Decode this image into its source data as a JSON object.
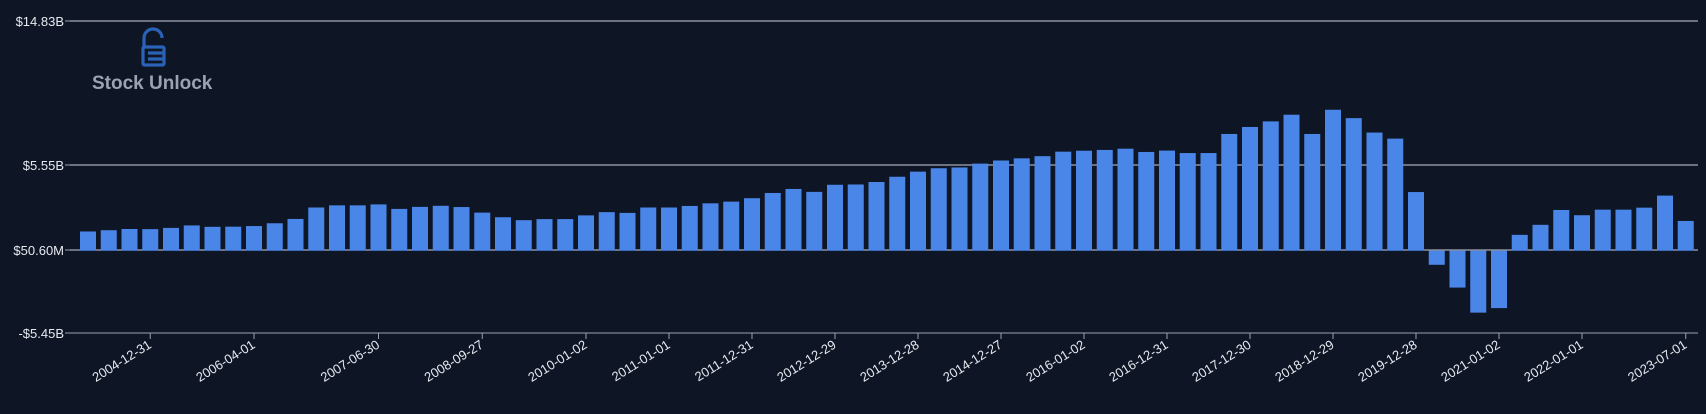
{
  "chart_data": {
    "type": "bar",
    "title": "",
    "xlabel": "",
    "ylabel": "",
    "series_color": "#4a86e8",
    "background": "#0e1626",
    "grid": true,
    "y_ticks": [
      {
        "value": 14830,
        "label": "$14.83B"
      },
      {
        "value": 5550,
        "label": "$5.55B"
      },
      {
        "value": 50.6,
        "label": "$50.60M"
      },
      {
        "value": -5450,
        "label": "-$5.45B"
      }
    ],
    "x_tick_labels": [
      "2004-12-31",
      "2006-04-01",
      "2007-06-30",
      "2008-09-27",
      "2010-01-02",
      "2011-01-01",
      "2011-12-31",
      "2012-12-29",
      "2013-12-28",
      "2014-12-27",
      "2016-01-02",
      "2016-12-31",
      "2017-12-30",
      "2018-12-29",
      "2019-12-28",
      "2021-01-02",
      "2022-01-01",
      "2023-07-01"
    ],
    "x_tick_bar_index": [
      3,
      8,
      14,
      19,
      24,
      28,
      32,
      36,
      40,
      44,
      48,
      52,
      56,
      60,
      64,
      68,
      72,
      77
    ],
    "values_musd": [
      1250,
      1330,
      1410,
      1400,
      1480,
      1640,
      1550,
      1560,
      1600,
      1780,
      2060,
      2800,
      2940,
      2940,
      3000,
      2710,
      2840,
      2910,
      2830,
      2470,
      2170,
      1980,
      2050,
      2050,
      2290,
      2500,
      2450,
      2800,
      2800,
      2900,
      3070,
      3180,
      3400,
      3740,
      4000,
      3810,
      4270,
      4290,
      4450,
      4790,
      5120,
      5340,
      5390,
      5640,
      5840,
      5980,
      6120,
      6410,
      6470,
      6520,
      6600,
      6390,
      6480,
      6320,
      6320,
      7550,
      8000,
      8360,
      8790,
      7550,
      9110,
      8570,
      7640,
      7250,
      3800,
      -930,
      -2440,
      -4100,
      -3800,
      1030,
      1680,
      2640,
      2300,
      2660,
      2660,
      2790,
      3570,
      1930
    ],
    "values_unit": "millions USD"
  },
  "logo": {
    "text": "Stock Unlock",
    "icon": "lock-icon",
    "icon_color": "#2a62b8"
  }
}
